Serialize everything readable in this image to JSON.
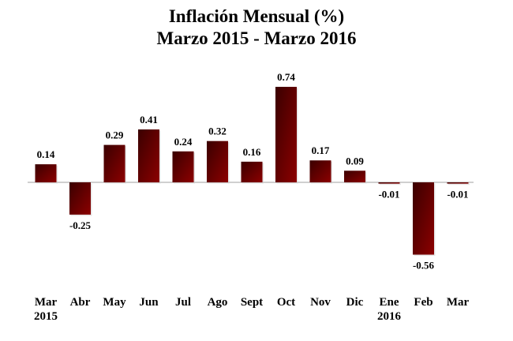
{
  "chart_data": {
    "type": "bar",
    "title": "Inflación Mensual (%)",
    "subtitle": "Marzo 2015 - Marzo 2016",
    "xlabel": "",
    "ylabel": "",
    "categories": [
      [
        "Mar",
        "2015"
      ],
      [
        "Abr"
      ],
      [
        "May"
      ],
      [
        "Jun"
      ],
      [
        "Jul"
      ],
      [
        "Ago"
      ],
      [
        "Sept"
      ],
      [
        "Oct"
      ],
      [
        "Nov"
      ],
      [
        "Dic"
      ],
      [
        "Ene",
        "2016"
      ],
      [
        "Feb"
      ],
      [
        "Mar"
      ]
    ],
    "values": [
      0.14,
      -0.25,
      0.29,
      0.41,
      0.24,
      0.32,
      0.16,
      0.74,
      0.17,
      0.09,
      -0.01,
      -0.56,
      -0.01
    ],
    "data_labels": [
      "0.14",
      "-0.25",
      "0.29",
      "0.41",
      "0.24",
      "0.32",
      "0.16",
      "0.74",
      "0.17",
      "0.09",
      "-0.01",
      "-0.56",
      "-0.01"
    ],
    "ylim": [
      -0.56,
      0.74
    ],
    "grid": false,
    "legend": "none",
    "colors": {
      "bar_dark": "#3a0000",
      "bar_light": "#8c0000",
      "axis": "#a0a0a0"
    }
  }
}
